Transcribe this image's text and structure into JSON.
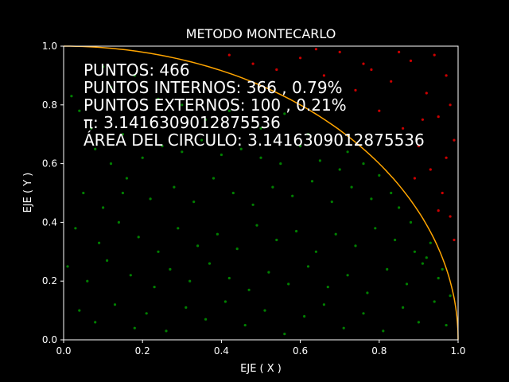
{
  "chart_data": {
    "type": "scatter",
    "title": "METODO MONTECARLO",
    "xlabel": "EJE ( X )",
    "ylabel": "EJE ( Y )",
    "xlim": [
      0,
      1
    ],
    "ylim": [
      0,
      1
    ],
    "xticks": [
      "0.0",
      "0.2",
      "0.4",
      "0.6",
      "0.8",
      "1.0"
    ],
    "yticks": [
      "0.0",
      "0.2",
      "0.4",
      "0.6",
      "0.8",
      "1.0"
    ],
    "grid": false,
    "annotations": [
      "PUNTOS: 466",
      "PUNTOS INTERNOS: 366 , 0.79%",
      "PUNTOS EXTERNOS: 100 , 0.21%",
      "π: 3.1416309012875536",
      "ÁREA DEL CIRCULO: 3.1416309012875536"
    ],
    "curve": {
      "name": "quarter circle",
      "equation": "x^2 + y^2 = 1",
      "color": "#ffa500"
    },
    "series": [
      {
        "color": "#008000",
        "points": [
          [
            0.02,
            0.83
          ],
          [
            0.04,
            0.78
          ],
          [
            0.08,
            0.65
          ],
          [
            0.12,
            0.6
          ],
          [
            0.16,
            0.55
          ],
          [
            0.2,
            0.62
          ],
          [
            0.25,
            0.66
          ],
          [
            0.3,
            0.64
          ],
          [
            0.35,
            0.68
          ],
          [
            0.4,
            0.63
          ],
          [
            0.45,
            0.65
          ],
          [
            0.5,
            0.62
          ],
          [
            0.55,
            0.6
          ],
          [
            0.6,
            0.66
          ],
          [
            0.65,
            0.61
          ],
          [
            0.7,
            0.58
          ],
          [
            0.05,
            0.5
          ],
          [
            0.1,
            0.45
          ],
          [
            0.15,
            0.5
          ],
          [
            0.22,
            0.48
          ],
          [
            0.28,
            0.52
          ],
          [
            0.33,
            0.47
          ],
          [
            0.38,
            0.55
          ],
          [
            0.43,
            0.5
          ],
          [
            0.48,
            0.46
          ],
          [
            0.53,
            0.52
          ],
          [
            0.58,
            0.49
          ],
          [
            0.63,
            0.54
          ],
          [
            0.68,
            0.47
          ],
          [
            0.73,
            0.52
          ],
          [
            0.78,
            0.48
          ],
          [
            0.83,
            0.5
          ],
          [
            0.03,
            0.38
          ],
          [
            0.09,
            0.33
          ],
          [
            0.14,
            0.4
          ],
          [
            0.19,
            0.35
          ],
          [
            0.24,
            0.3
          ],
          [
            0.29,
            0.38
          ],
          [
            0.34,
            0.32
          ],
          [
            0.39,
            0.36
          ],
          [
            0.44,
            0.31
          ],
          [
            0.49,
            0.39
          ],
          [
            0.54,
            0.34
          ],
          [
            0.59,
            0.37
          ],
          [
            0.64,
            0.3
          ],
          [
            0.69,
            0.36
          ],
          [
            0.74,
            0.32
          ],
          [
            0.79,
            0.38
          ],
          [
            0.84,
            0.34
          ],
          [
            0.89,
            0.3
          ],
          [
            0.92,
            0.28
          ],
          [
            0.01,
            0.25
          ],
          [
            0.06,
            0.2
          ],
          [
            0.11,
            0.27
          ],
          [
            0.17,
            0.22
          ],
          [
            0.23,
            0.18
          ],
          [
            0.27,
            0.24
          ],
          [
            0.32,
            0.2
          ],
          [
            0.37,
            0.26
          ],
          [
            0.42,
            0.21
          ],
          [
            0.47,
            0.17
          ],
          [
            0.52,
            0.23
          ],
          [
            0.57,
            0.19
          ],
          [
            0.62,
            0.25
          ],
          [
            0.67,
            0.18
          ],
          [
            0.72,
            0.22
          ],
          [
            0.77,
            0.16
          ],
          [
            0.82,
            0.24
          ],
          [
            0.87,
            0.19
          ],
          [
            0.91,
            0.26
          ],
          [
            0.95,
            0.21
          ],
          [
            0.04,
            0.1
          ],
          [
            0.08,
            0.06
          ],
          [
            0.13,
            0.12
          ],
          [
            0.18,
            0.04
          ],
          [
            0.21,
            0.09
          ],
          [
            0.26,
            0.03
          ],
          [
            0.31,
            0.11
          ],
          [
            0.36,
            0.07
          ],
          [
            0.41,
            0.13
          ],
          [
            0.46,
            0.05
          ],
          [
            0.51,
            0.1
          ],
          [
            0.56,
            0.02
          ],
          [
            0.61,
            0.08
          ],
          [
            0.66,
            0.12
          ],
          [
            0.71,
            0.04
          ],
          [
            0.76,
            0.09
          ],
          [
            0.81,
            0.03
          ],
          [
            0.86,
            0.11
          ],
          [
            0.9,
            0.06
          ],
          [
            0.94,
            0.13
          ],
          [
            0.97,
            0.05
          ],
          [
            0.12,
            0.86
          ],
          [
            0.18,
            0.9
          ],
          [
            0.24,
            0.82
          ],
          [
            0.1,
            0.93
          ],
          [
            0.3,
            0.8
          ],
          [
            0.36,
            0.75
          ],
          [
            0.42,
            0.78
          ],
          [
            0.5,
            0.72
          ],
          [
            0.56,
            0.77
          ],
          [
            0.62,
            0.7
          ],
          [
            0.72,
            0.64
          ],
          [
            0.76,
            0.6
          ],
          [
            0.8,
            0.56
          ],
          [
            0.85,
            0.45
          ],
          [
            0.88,
            0.4
          ],
          [
            0.93,
            0.33
          ],
          [
            0.96,
            0.24
          ],
          [
            0.98,
            0.15
          ],
          [
            0.15,
            0.7
          ],
          [
            0.07,
            0.72
          ]
        ]
      },
      {
        "color": "#cc0000",
        "points": [
          [
            0.42,
            0.97
          ],
          [
            0.48,
            0.94
          ],
          [
            0.54,
            0.92
          ],
          [
            0.6,
            0.96
          ],
          [
            0.66,
            0.9
          ],
          [
            0.7,
            0.98
          ],
          [
            0.74,
            0.85
          ],
          [
            0.78,
            0.92
          ],
          [
            0.8,
            0.78
          ],
          [
            0.83,
            0.88
          ],
          [
            0.86,
            0.72
          ],
          [
            0.88,
            0.95
          ],
          [
            0.9,
            0.66
          ],
          [
            0.92,
            0.84
          ],
          [
            0.93,
            0.58
          ],
          [
            0.95,
            0.76
          ],
          [
            0.96,
            0.5
          ],
          [
            0.97,
            0.9
          ],
          [
            0.98,
            0.42
          ],
          [
            0.99,
            0.68
          ],
          [
            0.85,
            0.98
          ],
          [
            0.94,
            0.97
          ],
          [
            0.91,
            0.75
          ],
          [
            0.97,
            0.62
          ],
          [
            0.99,
            0.34
          ],
          [
            0.76,
            0.94
          ],
          [
            0.89,
            0.55
          ],
          [
            0.95,
            0.44
          ],
          [
            0.98,
            0.8
          ],
          [
            0.64,
            0.99
          ]
        ]
      }
    ]
  }
}
